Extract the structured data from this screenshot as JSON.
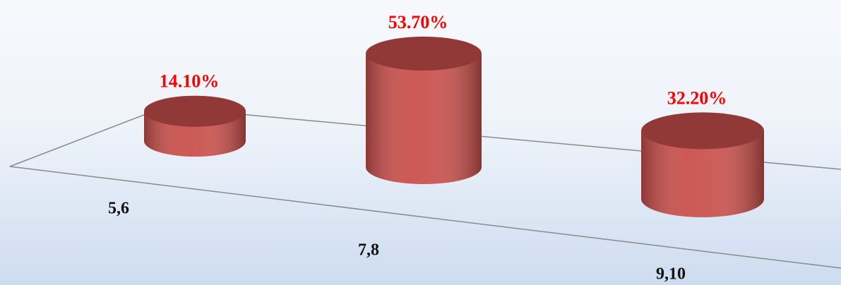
{
  "chart_data": {
    "type": "bar3d",
    "categories": [
      "5,6",
      "7,8",
      "9,10"
    ],
    "values": [
      14.1,
      53.7,
      32.2
    ],
    "value_labels": [
      "14.10%",
      "53.70%",
      "32.20%"
    ],
    "color": "#c9504c",
    "label_color": "#ff0000"
  }
}
